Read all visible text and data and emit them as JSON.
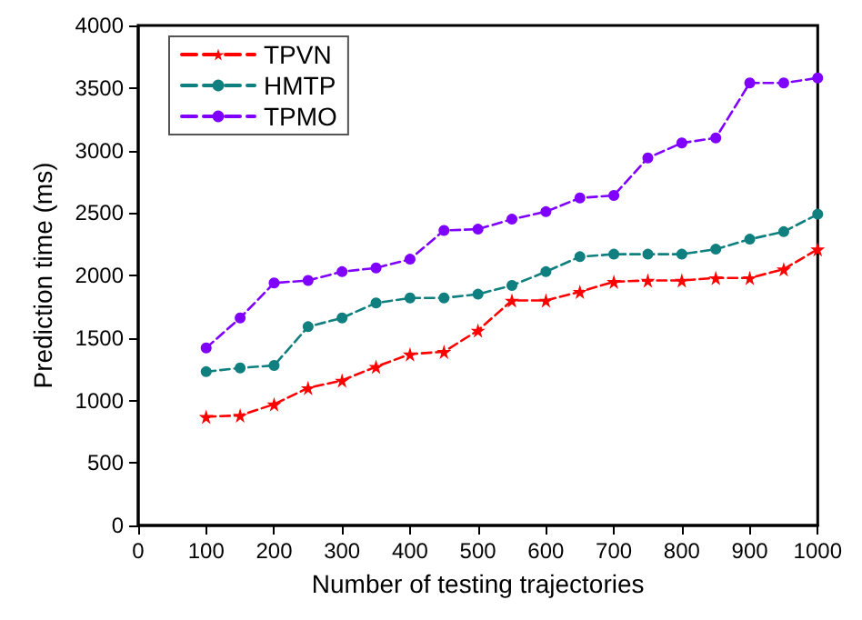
{
  "chart_data": {
    "type": "line",
    "xlabel": "Number of testing trajectories",
    "ylabel": "Prediction time (ms)",
    "x": [
      100,
      150,
      200,
      250,
      300,
      350,
      400,
      450,
      500,
      550,
      600,
      650,
      700,
      750,
      800,
      850,
      900,
      950,
      1000
    ],
    "series": [
      {
        "name": "TPVN",
        "color": "#ff0000",
        "marker": "star",
        "values": [
          870,
          880,
          970,
          1100,
          1160,
          1270,
          1370,
          1390,
          1560,
          1800,
          1800,
          1870,
          1950,
          1960,
          1960,
          1980,
          1980,
          2050,
          2210
        ]
      },
      {
        "name": "HMTP",
        "color": "#0f7f7f",
        "marker": "circle",
        "values": [
          1230,
          1260,
          1280,
          1590,
          1660,
          1780,
          1820,
          1820,
          1850,
          1920,
          2030,
          2150,
          2170,
          2170,
          2170,
          2210,
          2290,
          2350,
          2490
        ]
      },
      {
        "name": "TPMO",
        "color": "#7f00ff",
        "marker": "circle",
        "values": [
          1420,
          1660,
          1940,
          1960,
          2030,
          2060,
          2130,
          2360,
          2370,
          2450,
          2510,
          2620,
          2640,
          2940,
          3060,
          3100,
          3540,
          3540,
          3580
        ]
      }
    ],
    "xlim": [
      0,
      1000
    ],
    "xticks": [
      0,
      100,
      200,
      300,
      400,
      500,
      600,
      700,
      800,
      900,
      1000
    ],
    "ylim": [
      0,
      4000
    ],
    "yticks": [
      0,
      500,
      1000,
      1500,
      2000,
      2500,
      3000,
      3500,
      4000
    ],
    "grid": false,
    "legend": "top left",
    "line_style": "dashed"
  }
}
